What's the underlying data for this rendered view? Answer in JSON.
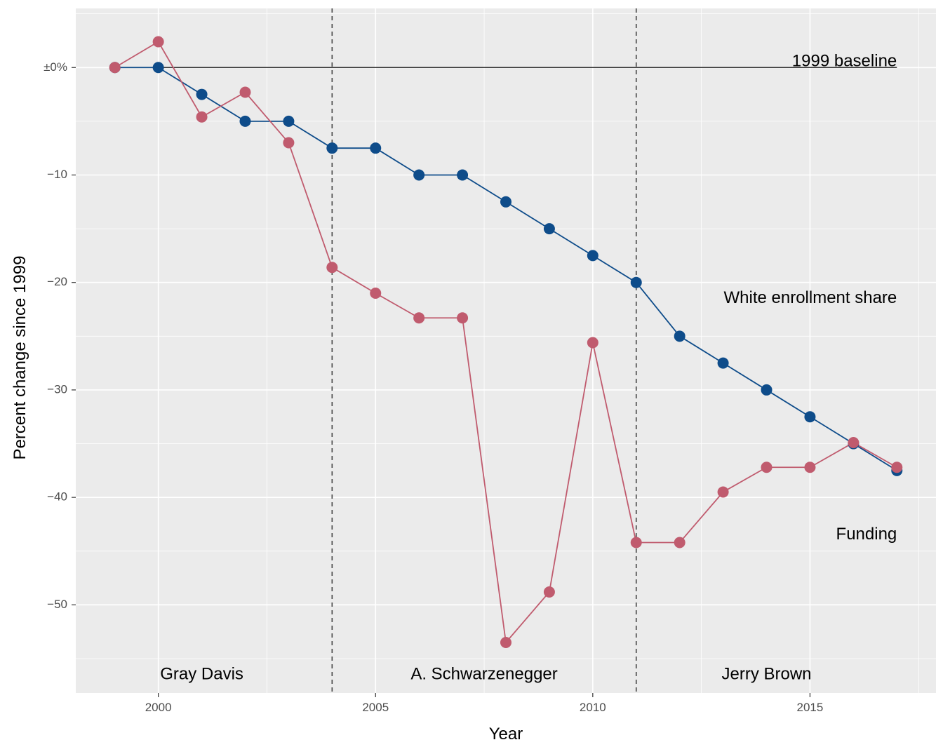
{
  "chart_data": {
    "type": "line",
    "xlabel": "Year",
    "ylabel": "Percent change since 1999",
    "xlim": [
      1998.1,
      2017.9
    ],
    "ylim": [
      -58.2,
      5.5
    ],
    "x_ticks": [
      {
        "value": 2000,
        "label": "2000"
      },
      {
        "value": 2005,
        "label": "2005"
      },
      {
        "value": 2010,
        "label": "2010"
      },
      {
        "value": 2015,
        "label": "2015"
      }
    ],
    "y_ticks": [
      {
        "value": 0,
        "label": "±0%"
      },
      {
        "value": -10,
        "label": "−10"
      },
      {
        "value": -20,
        "label": "−20"
      },
      {
        "value": -30,
        "label": "−30"
      },
      {
        "value": -40,
        "label": "−40"
      },
      {
        "value": -50,
        "label": "−50"
      }
    ],
    "grid": true,
    "baseline": {
      "y": 0,
      "label": "1999 baseline",
      "color": "#333333"
    },
    "vlines": [
      2004,
      2011
    ],
    "series": [
      {
        "name": "White enrollment share",
        "color": "#0E4C8A",
        "x": [
          1999,
          2000,
          2001,
          2002,
          2003,
          2004,
          2005,
          2006,
          2007,
          2008,
          2009,
          2010,
          2011,
          2012,
          2013,
          2014,
          2015,
          2016,
          2017
        ],
        "values": [
          0,
          0,
          -2.5,
          -5,
          -5,
          -7.5,
          -7.5,
          -10,
          -10,
          -12.5,
          -15,
          -17.5,
          -20,
          -25,
          -27.5,
          -30,
          -32.5,
          -35,
          -37.5
        ]
      },
      {
        "name": "Funding",
        "color": "#C05B6E",
        "x": [
          1999,
          2000,
          2001,
          2002,
          2003,
          2004,
          2005,
          2006,
          2007,
          2008,
          2009,
          2010,
          2011,
          2012,
          2013,
          2014,
          2015,
          2016,
          2017
        ],
        "values": [
          0,
          2.4,
          -4.6,
          -2.3,
          -7,
          -18.6,
          -21,
          -23.3,
          -23.3,
          -53.5,
          -48.8,
          -25.6,
          -44.2,
          -44.2,
          -39.5,
          -37.2,
          -37.2,
          -34.9,
          -37.2
        ]
      }
    ],
    "annotations": [
      {
        "text": "1999 baseline",
        "x": 2017,
        "y": 0,
        "anchor": "end",
        "dy": -8,
        "color": "#000000"
      },
      {
        "text": "White enrollment share",
        "x": 2017,
        "y": -21.5,
        "anchor": "end",
        "dy": 0,
        "color": "#000000"
      },
      {
        "text": "Funding",
        "x": 2017,
        "y": -43.5,
        "anchor": "end",
        "dy": 0,
        "color": "#000000"
      },
      {
        "text": "Gray Davis",
        "x": 2001,
        "y": -56.5,
        "anchor": "middle",
        "dy": 0,
        "color": "#000000"
      },
      {
        "text": "A. Schwarzenegger",
        "x": 2007.5,
        "y": -56.5,
        "anchor": "middle",
        "dy": 0,
        "color": "#000000"
      },
      {
        "text": "Jerry Brown",
        "x": 2014,
        "y": -56.5,
        "anchor": "middle",
        "dy": 0,
        "color": "#000000"
      }
    ],
    "panel_color": "#EBEBEB",
    "grid_color": "#FFFFFF"
  }
}
